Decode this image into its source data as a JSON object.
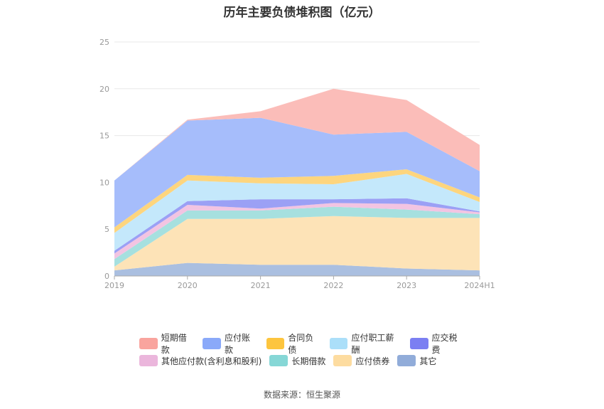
{
  "chart_data": {
    "type": "area",
    "stacked": true,
    "title": "历年主要负债堆积图（亿元）",
    "source": "数据来源：恒生聚源",
    "categories": [
      "2019",
      "2020",
      "2021",
      "2022",
      "2023",
      "2024H1"
    ],
    "ylim": [
      0,
      25
    ],
    "yticks": [
      "0",
      "5",
      "10",
      "15",
      "20",
      "25"
    ],
    "grid": true,
    "legend_position": "bottom",
    "series": [
      {
        "name": "其它",
        "color": "#aabfe0",
        "values": [
          0.6,
          1.4,
          1.2,
          1.2,
          0.8,
          0.6
        ]
      },
      {
        "name": "应付债券",
        "color": "#fde3b7",
        "values": [
          0.4,
          4.7,
          4.9,
          5.2,
          5.4,
          5.6
        ]
      },
      {
        "name": "长期借款",
        "color": "#a6e0df",
        "values": [
          0.8,
          0.9,
          0.9,
          1.0,
          0.9,
          0.4
        ]
      },
      {
        "name": "其他应付款(含利息和股利)",
        "color": "#f2c4e2",
        "values": [
          0.6,
          0.6,
          0.2,
          0.4,
          0.6,
          0.2
        ]
      },
      {
        "name": "应交税费",
        "color": "#9ba0f5",
        "values": [
          0.3,
          0.4,
          1.0,
          0.4,
          0.6,
          0.1
        ]
      },
      {
        "name": "应付职工薪酬",
        "color": "#c4e8fb",
        "values": [
          1.9,
          2.2,
          1.7,
          1.6,
          2.6,
          1.0
        ]
      },
      {
        "name": "合同负债",
        "color": "#fdd57e",
        "values": [
          0.6,
          0.6,
          0.6,
          0.9,
          0.5,
          0.5
        ]
      },
      {
        "name": "应付账款",
        "color": "#a6bdfb",
        "values": [
          5.0,
          5.8,
          6.4,
          4.4,
          4.0,
          2.8
        ]
      },
      {
        "name": "短期借款",
        "color": "#fbbdb9",
        "values": [
          0.0,
          0.1,
          0.7,
          4.9,
          3.4,
          2.8
        ]
      }
    ],
    "legend_order": [
      "短期借款",
      "应付账款",
      "合同负债",
      "应付职工薪酬",
      "应交税费",
      "其他应付款(含利息和股利)",
      "长期借款",
      "应付债券",
      "其它"
    ],
    "legend_colors": {
      "短期借款": "#f9a49e",
      "应付账款": "#8aa9f9",
      "合同负债": "#fdc53e",
      "应付职工薪酬": "#abdff9",
      "应交税费": "#7b7ff2",
      "其他应付款(含利息和股利)": "#ebb6dc",
      "长期借款": "#86d7d6",
      "应付债券": "#fddca0",
      "其它": "#91acd9"
    }
  }
}
